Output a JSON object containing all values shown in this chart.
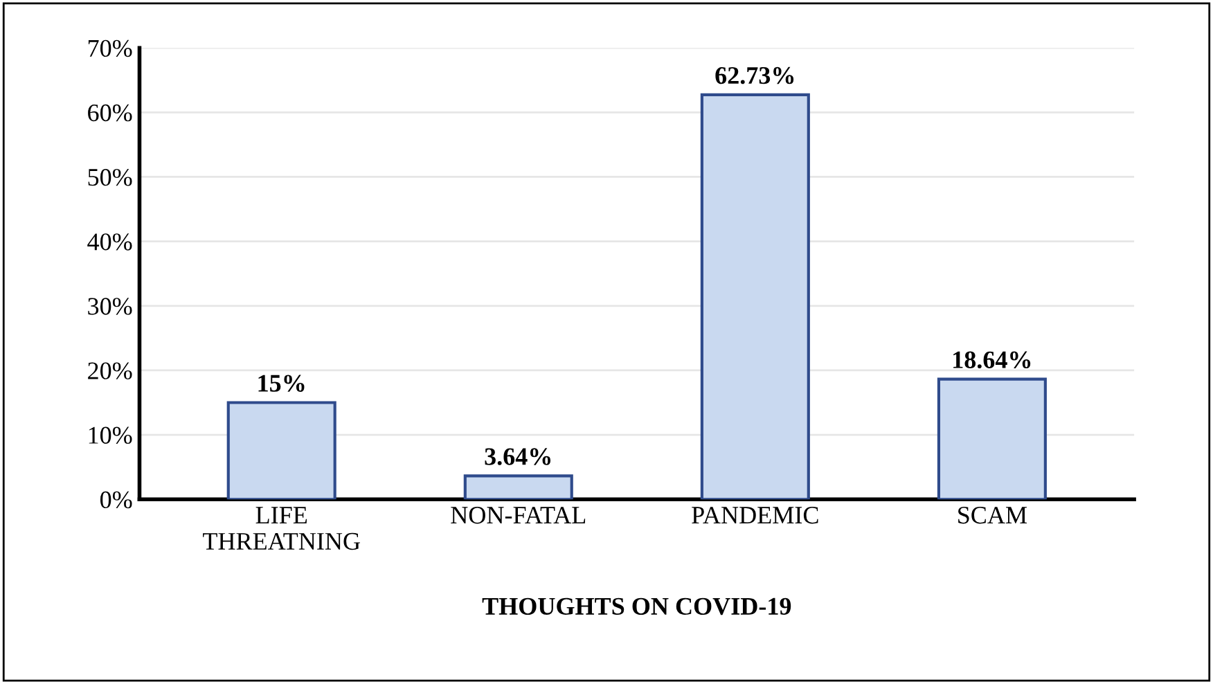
{
  "chart_data": {
    "type": "bar",
    "xlabel": "THOUGHTS ON COVID-19",
    "categories": [
      "LIFE\nTHREATNING",
      "NON-FATAL",
      "PANDEMIC",
      "SCAM"
    ],
    "values": [
      15,
      3.64,
      62.73,
      18.64
    ],
    "value_labels": [
      "15%",
      "3.64%",
      "62.73%",
      "18.64%"
    ],
    "color": "#c9d9f0",
    "ylim": [
      0,
      70
    ],
    "yticks": [
      {
        "value": 0,
        "label": "0%"
      },
      {
        "value": 10,
        "label": "10%"
      },
      {
        "value": 20,
        "label": "20%"
      },
      {
        "value": 30,
        "label": "30%"
      },
      {
        "value": 40,
        "label": "40%"
      },
      {
        "value": 50,
        "label": "50%"
      },
      {
        "value": 60,
        "label": "60%"
      },
      {
        "value": 70,
        "label": "70%"
      }
    ],
    "grid": "y",
    "legend": false
  }
}
